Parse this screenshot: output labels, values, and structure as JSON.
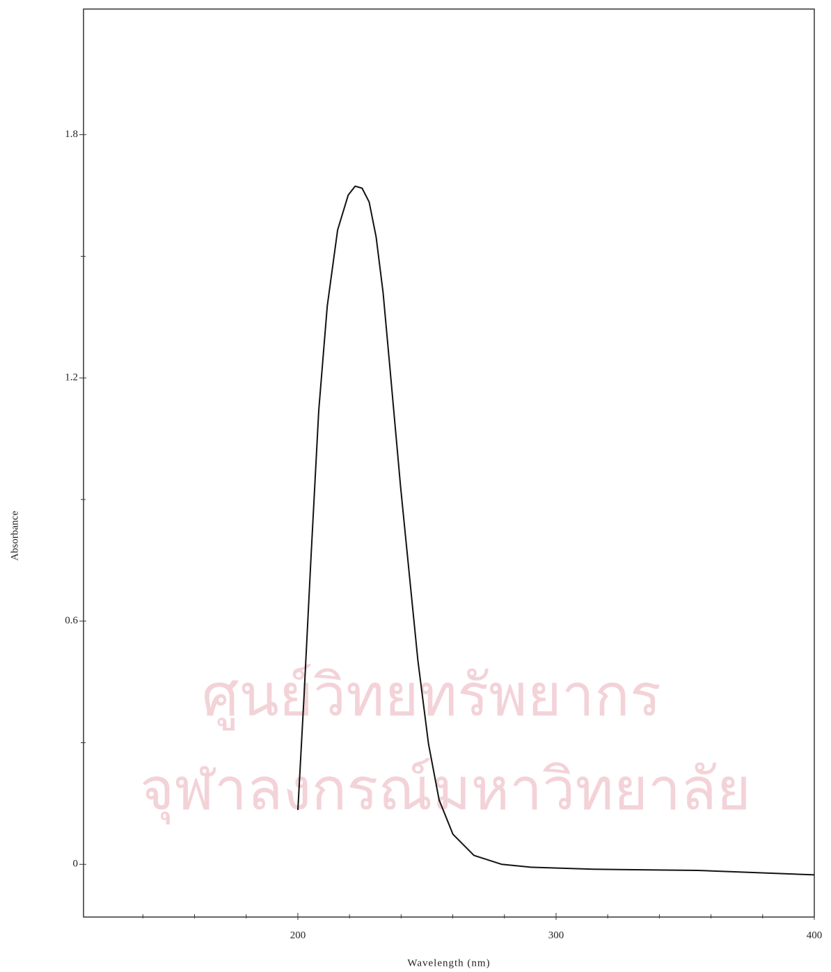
{
  "chart_data": {
    "type": "line",
    "x_label": "Wavelength (nm)",
    "y_label": "Absorbance",
    "watermark": [
      "ศูนย์วิทยทรัพยากร",
      "จุฬาลงกรณ์มหาวิทยาลัย"
    ],
    "xlim": [
      117,
      400
    ],
    "ylim": [
      -0.13,
      2.11
    ],
    "xticks": [
      200,
      300,
      400
    ],
    "xminorticks": [
      140,
      160,
      180,
      220,
      240,
      260,
      280,
      320,
      340,
      360,
      380
    ],
    "yticks": [
      0,
      0.6,
      1.2,
      1.8
    ],
    "yminorticks": [
      0.3,
      0.9,
      1.5
    ],
    "grid": false,
    "series": [
      {
        "color": "#111111",
        "x": [
          200,
          202.4,
          205.1,
          208.1,
          211.4,
          215.4,
          219.5,
          222.2,
          224.9,
          227.6,
          230.3,
          233.0,
          235.7,
          239.8,
          243.8,
          246.5,
          250.6,
          254.7,
          260.1,
          268.2,
          279.0,
          289.9,
          314.2,
          354.8,
          400
        ],
        "values": [
          0.134,
          0.417,
          0.759,
          1.12,
          1.377,
          1.565,
          1.651,
          1.673,
          1.668,
          1.634,
          1.548,
          1.411,
          1.222,
          0.931,
          0.674,
          0.502,
          0.297,
          0.159,
          0.074,
          0.022,
          0.0,
          -0.007,
          -0.012,
          -0.015,
          -0.026
        ]
      }
    ]
  }
}
